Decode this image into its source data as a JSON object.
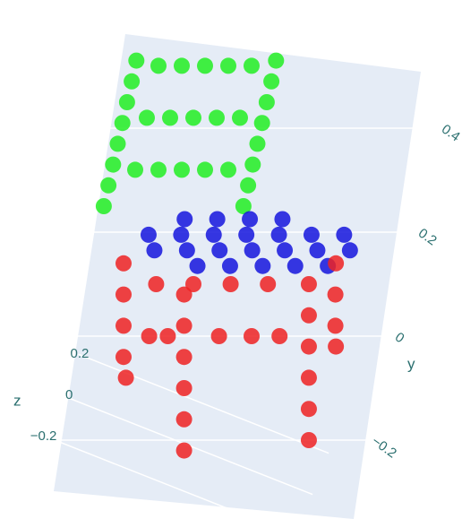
{
  "chart_data": {
    "type": "scatter3d",
    "xlim": [
      -0.45,
      0.45
    ],
    "ylim": [
      -0.3,
      0.6
    ],
    "zlim": [
      -0.3,
      0.3
    ],
    "yaxis_title": "y",
    "zaxis_title": "z",
    "yticks": [
      {
        "value": 0.4,
        "label": "0.4"
      },
      {
        "value": 0.2,
        "label": "0.2"
      },
      0,
      {
        "value": -0.2,
        "label": "−0.2"
      }
    ],
    "zticks": [
      {
        "value": 0.2,
        "label": "0.2"
      },
      0,
      {
        "value": -0.2,
        "label": "−0.2"
      }
    ],
    "grid": true,
    "series": [
      {
        "color": "#22ee22",
        "x": [
          -0.33,
          -0.33,
          -0.33,
          -0.33,
          -0.33,
          -0.33,
          -0.33,
          -0.33,
          -0.03,
          -0.03,
          -0.03,
          -0.03,
          -0.03,
          -0.03,
          -0.03,
          -0.03,
          -0.28,
          -0.23,
          -0.18,
          -0.13,
          -0.08,
          -0.28,
          -0.23,
          -0.18,
          -0.13,
          -0.08,
          -0.28,
          -0.23,
          -0.18,
          -0.13,
          -0.08
        ],
        "y": [
          0.25,
          0.29,
          0.33,
          0.37,
          0.41,
          0.45,
          0.49,
          0.53,
          0.25,
          0.29,
          0.33,
          0.37,
          0.41,
          0.45,
          0.49,
          0.53,
          0.52,
          0.52,
          0.52,
          0.52,
          0.52,
          0.42,
          0.42,
          0.42,
          0.42,
          0.42,
          0.32,
          0.32,
          0.32,
          0.32,
          0.32
        ],
        "z": [
          0,
          0,
          0,
          0,
          0,
          0,
          0,
          0,
          0,
          0,
          0,
          0,
          0,
          0,
          0,
          0,
          0,
          0,
          0,
          0,
          0,
          0,
          0,
          0,
          0,
          0,
          0,
          0,
          0,
          0,
          0
        ]
      },
      {
        "color": "#1515dd",
        "x": [
          -0.15,
          -0.08,
          -0.01,
          0.06,
          -0.22,
          -0.15,
          -0.08,
          -0.01,
          0.06,
          0.13,
          0.2,
          -0.2,
          -0.13,
          -0.06,
          0.01,
          0.08,
          0.15,
          0.22,
          -0.1,
          -0.03,
          0.04,
          0.11,
          0.18
        ],
        "y": [
          0.225,
          0.225,
          0.225,
          0.225,
          0.195,
          0.195,
          0.195,
          0.195,
          0.195,
          0.195,
          0.195,
          0.165,
          0.165,
          0.165,
          0.165,
          0.165,
          0.165,
          0.165,
          0.135,
          0.135,
          0.135,
          0.135,
          0.135
        ],
        "z": [
          0,
          0,
          0,
          0,
          0,
          0,
          0,
          0,
          0,
          0,
          0,
          0,
          0,
          0,
          0,
          0,
          0,
          0,
          0,
          0,
          0,
          0,
          0
        ]
      },
      {
        "color": "#ee2222",
        "x": [
          -0.26,
          -0.245,
          -0.23,
          -0.215,
          -0.2,
          -0.115,
          -0.1,
          -0.085,
          -0.07,
          -0.055,
          -0.04,
          0.148,
          0.163,
          0.178,
          0.193,
          0.208,
          0.223,
          0.196,
          0.21,
          0.225,
          0.236,
          -0.18,
          -0.1,
          -0.02,
          0.06,
          -0.17,
          -0.13,
          -0.02,
          0.05,
          0.11
        ],
        "y": [
          0.14,
          0.08,
          0.02,
          -0.04,
          -0.08,
          0.08,
          0.02,
          -0.04,
          -0.1,
          -0.16,
          -0.22,
          0.1,
          0.04,
          -0.02,
          -0.08,
          -0.14,
          -0.2,
          0.14,
          0.08,
          0.02,
          -0.02,
          0.1,
          0.1,
          0.1,
          0.1,
          0,
          0,
          0,
          0,
          0
        ],
        "z": [
          0,
          0,
          0,
          0,
          0,
          0,
          0,
          0,
          0,
          0,
          0,
          0,
          0,
          0,
          0,
          0,
          0,
          0,
          0,
          0,
          0,
          0,
          0,
          0,
          0,
          0,
          0,
          0,
          0,
          0
        ]
      }
    ]
  }
}
